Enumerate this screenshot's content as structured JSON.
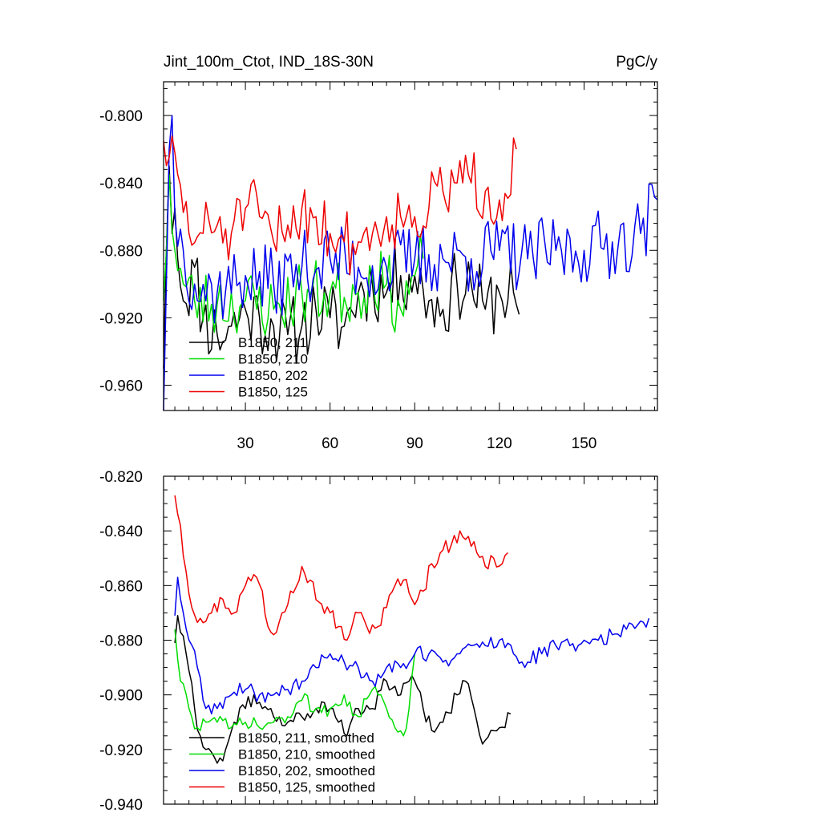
{
  "chart_data": [
    {
      "type": "line",
      "title_left": "Jint_100m_Ctot, IND_18S-30N",
      "title_right": "PgC/y",
      "xlim": [
        1,
        176
      ],
      "ylim": [
        -0.975,
        -0.78
      ],
      "xticks": [
        30,
        60,
        90,
        120,
        150
      ],
      "xtick_labels": [
        "30",
        "60",
        "90",
        "120",
        "150"
      ],
      "yticks": [
        -0.8,
        -0.84,
        -0.88,
        -0.92,
        -0.96
      ],
      "ytick_labels": [
        "-0.800",
        "-0.840",
        "-0.880",
        "-0.920",
        "-0.960"
      ],
      "legend_position": "bottom-left",
      "series": [
        {
          "name": "B1850, 211",
          "color": "#000000",
          "x_start": 1,
          "x_end": 127,
          "anchors": [
            [
              1,
              -0.95
            ],
            [
              2,
              -0.88
            ],
            [
              3,
              -0.83
            ],
            [
              4,
              -0.87
            ],
            [
              5,
              -0.855
            ],
            [
              8,
              -0.91
            ],
            [
              12,
              -0.89
            ],
            [
              15,
              -0.92
            ],
            [
              20,
              -0.93
            ],
            [
              25,
              -0.925
            ],
            [
              30,
              -0.915
            ],
            [
              35,
              -0.92
            ],
            [
              40,
              -0.925
            ],
            [
              45,
              -0.93
            ],
            [
              50,
              -0.925
            ],
            [
              55,
              -0.915
            ],
            [
              60,
              -0.92
            ],
            [
              65,
              -0.925
            ],
            [
              70,
              -0.905
            ],
            [
              75,
              -0.9
            ],
            [
              80,
              -0.905
            ],
            [
              85,
              -0.895
            ],
            [
              90,
              -0.895
            ],
            [
              95,
              -0.91
            ],
            [
              100,
              -0.915
            ],
            [
              105,
              -0.9
            ],
            [
              110,
              -0.9
            ],
            [
              115,
              -0.915
            ],
            [
              120,
              -0.905
            ],
            [
              125,
              -0.905
            ],
            [
              127,
              -0.918
            ]
          ],
          "noise": 0.022,
          "seed": 11
        },
        {
          "name": "B1850, 210",
          "color": "#00dd00",
          "x_start": 1,
          "x_end": 93,
          "anchors": [
            [
              1,
              -0.91
            ],
            [
              2,
              -0.88
            ],
            [
              3,
              -0.835
            ],
            [
              5,
              -0.88
            ],
            [
              8,
              -0.9
            ],
            [
              12,
              -0.91
            ],
            [
              20,
              -0.912
            ],
            [
              30,
              -0.91
            ],
            [
              40,
              -0.915
            ],
            [
              50,
              -0.905
            ],
            [
              60,
              -0.905
            ],
            [
              70,
              -0.905
            ],
            [
              75,
              -0.895
            ],
            [
              80,
              -0.9
            ],
            [
              85,
              -0.915
            ],
            [
              90,
              -0.895
            ],
            [
              93,
              -0.885
            ]
          ],
          "noise": 0.02,
          "seed": 23
        },
        {
          "name": "B1850, 202",
          "color": "#0000ee",
          "x_start": 1,
          "x_end": 176,
          "anchors": [
            [
              1,
              -0.975
            ],
            [
              2,
              -0.9
            ],
            [
              3,
              -0.82
            ],
            [
              4,
              -0.8
            ],
            [
              5,
              -0.86
            ],
            [
              8,
              -0.88
            ],
            [
              12,
              -0.9
            ],
            [
              20,
              -0.905
            ],
            [
              30,
              -0.895
            ],
            [
              40,
              -0.9
            ],
            [
              50,
              -0.89
            ],
            [
              60,
              -0.885
            ],
            [
              70,
              -0.89
            ],
            [
              80,
              -0.89
            ],
            [
              90,
              -0.885
            ],
            [
              100,
              -0.885
            ],
            [
              110,
              -0.885
            ],
            [
              120,
              -0.88
            ],
            [
              130,
              -0.885
            ],
            [
              140,
              -0.88
            ],
            [
              150,
              -0.88
            ],
            [
              160,
              -0.875
            ],
            [
              170,
              -0.87
            ],
            [
              176,
              -0.85
            ]
          ],
          "noise": 0.022,
          "seed": 37
        },
        {
          "name": "B1850, 125",
          "color": "#ee0000",
          "x_start": 1,
          "x_end": 126,
          "anchors": [
            [
              1,
              -0.815
            ],
            [
              3,
              -0.825
            ],
            [
              6,
              -0.835
            ],
            [
              10,
              -0.87
            ],
            [
              15,
              -0.87
            ],
            [
              20,
              -0.865
            ],
            [
              25,
              -0.87
            ],
            [
              30,
              -0.855
            ],
            [
              35,
              -0.86
            ],
            [
              40,
              -0.875
            ],
            [
              45,
              -0.865
            ],
            [
              50,
              -0.855
            ],
            [
              55,
              -0.86
            ],
            [
              60,
              -0.87
            ],
            [
              65,
              -0.875
            ],
            [
              70,
              -0.875
            ],
            [
              75,
              -0.87
            ],
            [
              80,
              -0.86
            ],
            [
              85,
              -0.86
            ],
            [
              90,
              -0.86
            ],
            [
              95,
              -0.855
            ],
            [
              100,
              -0.845
            ],
            [
              105,
              -0.84
            ],
            [
              110,
              -0.84
            ],
            [
              115,
              -0.845
            ],
            [
              120,
              -0.85
            ],
            [
              126,
              -0.82
            ]
          ],
          "noise": 0.02,
          "seed": 51
        }
      ]
    },
    {
      "type": "line",
      "xlim": [
        1,
        176
      ],
      "ylim": [
        -0.94,
        -0.82
      ],
      "xticks": [
        30,
        60,
        90,
        120,
        150
      ],
      "yticks": [
        -0.82,
        -0.84,
        -0.86,
        -0.88,
        -0.9,
        -0.92,
        -0.94
      ],
      "ytick_labels": [
        "-0.820",
        "-0.840",
        "-0.860",
        "-0.880",
        "-0.900",
        "-0.920",
        "-0.940"
      ],
      "legend_position": "bottom-left",
      "series": [
        {
          "name": "B1850, 211, smoothed",
          "color": "#000000",
          "x_start": 5,
          "x_end": 124,
          "anchors": [
            [
              5,
              -0.881
            ],
            [
              6,
              -0.871
            ],
            [
              9,
              -0.885
            ],
            [
              12,
              -0.905
            ],
            [
              14,
              -0.915
            ],
            [
              16,
              -0.92
            ],
            [
              18,
              -0.921
            ],
            [
              20,
              -0.925
            ],
            [
              23,
              -0.92
            ],
            [
              26,
              -0.91
            ],
            [
              30,
              -0.905
            ],
            [
              33,
              -0.9
            ],
            [
              36,
              -0.905
            ],
            [
              40,
              -0.908
            ],
            [
              45,
              -0.91
            ],
            [
              50,
              -0.908
            ],
            [
              55,
              -0.905
            ],
            [
              60,
              -0.905
            ],
            [
              63,
              -0.91
            ],
            [
              66,
              -0.915
            ],
            [
              70,
              -0.905
            ],
            [
              75,
              -0.905
            ],
            [
              80,
              -0.895
            ],
            [
              85,
              -0.9
            ],
            [
              88,
              -0.895
            ],
            [
              90,
              -0.895
            ],
            [
              93,
              -0.905
            ],
            [
              96,
              -0.913
            ],
            [
              100,
              -0.91
            ],
            [
              105,
              -0.9
            ],
            [
              108,
              -0.895
            ],
            [
              111,
              -0.905
            ],
            [
              114,
              -0.918
            ],
            [
              117,
              -0.913
            ],
            [
              120,
              -0.912
            ],
            [
              124,
              -0.907
            ]
          ],
          "noise": 0.003,
          "seed": 61
        },
        {
          "name": "B1850, 210, smoothed",
          "color": "#00dd00",
          "x_start": 5,
          "x_end": 90,
          "anchors": [
            [
              5,
              -0.876
            ],
            [
              7,
              -0.895
            ],
            [
              10,
              -0.905
            ],
            [
              13,
              -0.912
            ],
            [
              16,
              -0.91
            ],
            [
              20,
              -0.91
            ],
            [
              25,
              -0.912
            ],
            [
              30,
              -0.91
            ],
            [
              35,
              -0.912
            ],
            [
              40,
              -0.91
            ],
            [
              45,
              -0.908
            ],
            [
              50,
              -0.902
            ],
            [
              55,
              -0.905
            ],
            [
              60,
              -0.905
            ],
            [
              65,
              -0.9
            ],
            [
              70,
              -0.908
            ],
            [
              75,
              -0.898
            ],
            [
              80,
              -0.905
            ],
            [
              83,
              -0.912
            ],
            [
              86,
              -0.915
            ],
            [
              88,
              -0.905
            ],
            [
              90,
              -0.885
            ]
          ],
          "noise": 0.003,
          "seed": 73
        },
        {
          "name": "B1850, 202, smoothed",
          "color": "#0000ee",
          "x_start": 5,
          "x_end": 173,
          "anchors": [
            [
              5,
              -0.871
            ],
            [
              6,
              -0.857
            ],
            [
              8,
              -0.87
            ],
            [
              10,
              -0.88
            ],
            [
              13,
              -0.89
            ],
            [
              16,
              -0.905
            ],
            [
              20,
              -0.905
            ],
            [
              25,
              -0.9
            ],
            [
              30,
              -0.898
            ],
            [
              35,
              -0.9
            ],
            [
              40,
              -0.9
            ],
            [
              45,
              -0.898
            ],
            [
              50,
              -0.895
            ],
            [
              55,
              -0.89
            ],
            [
              60,
              -0.885
            ],
            [
              65,
              -0.888
            ],
            [
              70,
              -0.89
            ],
            [
              75,
              -0.895
            ],
            [
              80,
              -0.89
            ],
            [
              85,
              -0.89
            ],
            [
              90,
              -0.885
            ],
            [
              95,
              -0.885
            ],
            [
              100,
              -0.888
            ],
            [
              105,
              -0.885
            ],
            [
              110,
              -0.882
            ],
            [
              115,
              -0.882
            ],
            [
              120,
              -0.88
            ],
            [
              125,
              -0.885
            ],
            [
              130,
              -0.888
            ],
            [
              135,
              -0.885
            ],
            [
              140,
              -0.882
            ],
            [
              145,
              -0.882
            ],
            [
              150,
              -0.88
            ],
            [
              155,
              -0.88
            ],
            [
              160,
              -0.878
            ],
            [
              165,
              -0.876
            ],
            [
              170,
              -0.873
            ],
            [
              173,
              -0.872
            ]
          ],
          "noise": 0.003,
          "seed": 89
        },
        {
          "name": "B1850, 125, smoothed",
          "color": "#ee0000",
          "x_start": 5,
          "x_end": 123,
          "anchors": [
            [
              5,
              -0.827
            ],
            [
              7,
              -0.838
            ],
            [
              9,
              -0.855
            ],
            [
              11,
              -0.868
            ],
            [
              14,
              -0.872
            ],
            [
              18,
              -0.87
            ],
            [
              22,
              -0.865
            ],
            [
              26,
              -0.87
            ],
            [
              30,
              -0.86
            ],
            [
              33,
              -0.856
            ],
            [
              36,
              -0.862
            ],
            [
              38,
              -0.875
            ],
            [
              40,
              -0.878
            ],
            [
              43,
              -0.87
            ],
            [
              46,
              -0.862
            ],
            [
              50,
              -0.853
            ],
            [
              53,
              -0.858
            ],
            [
              56,
              -0.866
            ],
            [
              60,
              -0.87
            ],
            [
              63,
              -0.875
            ],
            [
              66,
              -0.88
            ],
            [
              68,
              -0.874
            ],
            [
              70,
              -0.87
            ],
            [
              73,
              -0.875
            ],
            [
              77,
              -0.875
            ],
            [
              80,
              -0.868
            ],
            [
              83,
              -0.86
            ],
            [
              86,
              -0.858
            ],
            [
              89,
              -0.865
            ],
            [
              93,
              -0.862
            ],
            [
              96,
              -0.852
            ],
            [
              100,
              -0.847
            ],
            [
              103,
              -0.845
            ],
            [
              106,
              -0.84
            ],
            [
              109,
              -0.842
            ],
            [
              112,
              -0.848
            ],
            [
              115,
              -0.853
            ],
            [
              118,
              -0.85
            ],
            [
              121,
              -0.852
            ],
            [
              123,
              -0.848
            ]
          ],
          "noise": 0.003,
          "seed": 97
        }
      ]
    }
  ]
}
